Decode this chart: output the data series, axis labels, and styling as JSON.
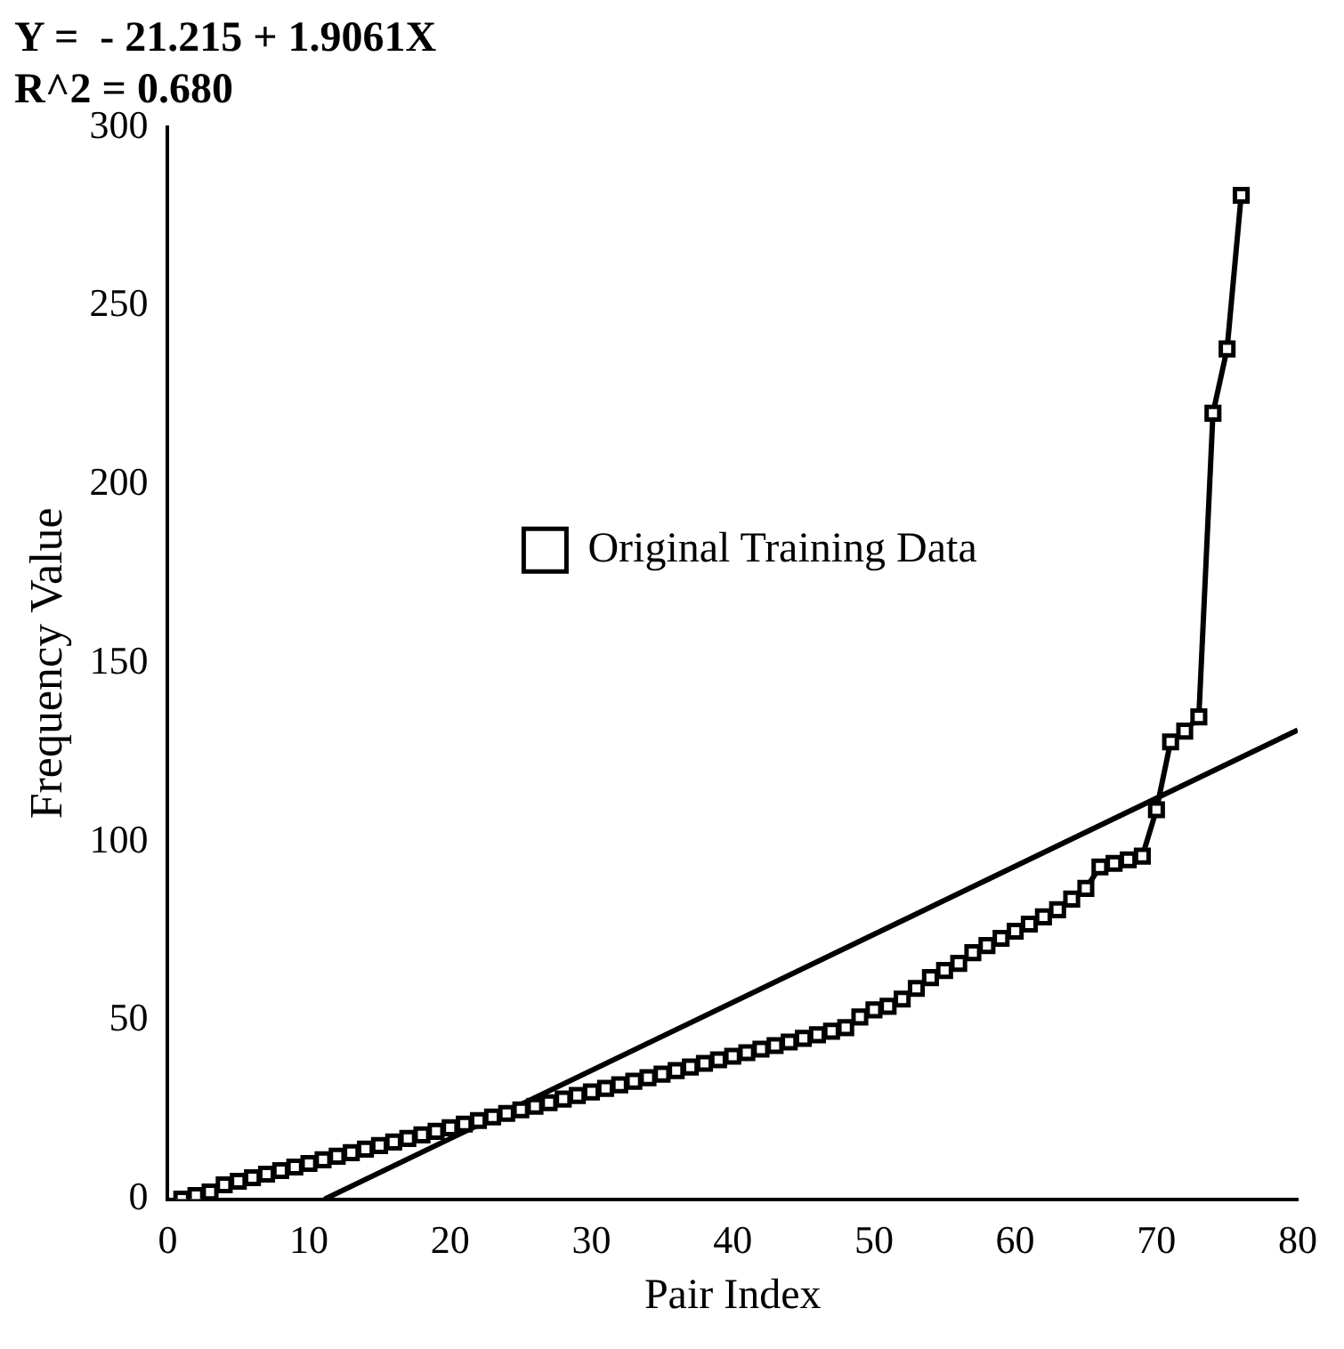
{
  "chart_data": {
    "type": "scatter",
    "title": "Y =  - 21.215 + 1.9061X",
    "subtitle": "R^2 = 0.680",
    "xlabel": "Pair Index",
    "ylabel": "Frequency Value",
    "xlim": [
      0,
      80
    ],
    "xticks": [
      0,
      10,
      20,
      30,
      40,
      50,
      60,
      70,
      80
    ],
    "ylim": [
      0,
      300
    ],
    "yticks": [
      0,
      50,
      100,
      150,
      200,
      250,
      300
    ],
    "grid": false,
    "legend": "left",
    "marker": "square",
    "line_style": "solid",
    "series": [
      {
        "name": "Original Training Data",
        "type": "line",
        "color": "#000000",
        "x": [
          1,
          2,
          3,
          4,
          5,
          6,
          7,
          8,
          9,
          10,
          11,
          12,
          13,
          14,
          15,
          16,
          17,
          18,
          19,
          20,
          21,
          22,
          23,
          24,
          25,
          26,
          27,
          28,
          29,
          30,
          31,
          32,
          33,
          34,
          35,
          36,
          37,
          38,
          39,
          40,
          41,
          42,
          43,
          44,
          45,
          46,
          47,
          48,
          49,
          50,
          51,
          52,
          53,
          54,
          55,
          56,
          57,
          58,
          59,
          60,
          61,
          62,
          63,
          64,
          65,
          66,
          67,
          68,
          69,
          70,
          71,
          72,
          73,
          74,
          75,
          76
        ],
        "values": [
          0,
          1,
          2,
          4,
          5,
          6,
          7,
          8,
          9,
          10,
          11,
          12,
          13,
          14,
          15,
          16,
          17,
          18,
          19,
          20,
          21,
          22,
          23,
          24,
          25,
          26,
          27,
          28,
          29,
          30,
          31,
          32,
          33,
          34,
          35,
          36,
          37,
          38,
          39,
          40,
          41,
          42,
          43,
          44,
          45,
          46,
          47,
          48,
          51,
          53,
          54,
          56,
          59,
          62,
          64,
          66,
          69,
          71,
          73,
          75,
          77,
          79,
          81,
          84,
          87,
          93,
          94,
          95,
          96,
          109,
          128,
          131,
          135,
          220,
          238,
          281
        ]
      },
      {
        "type": "line",
        "marker": "none",
        "color": "#000000",
        "x": [
          11.1,
          80
        ],
        "values": [
          0,
          131.3
        ]
      }
    ]
  }
}
